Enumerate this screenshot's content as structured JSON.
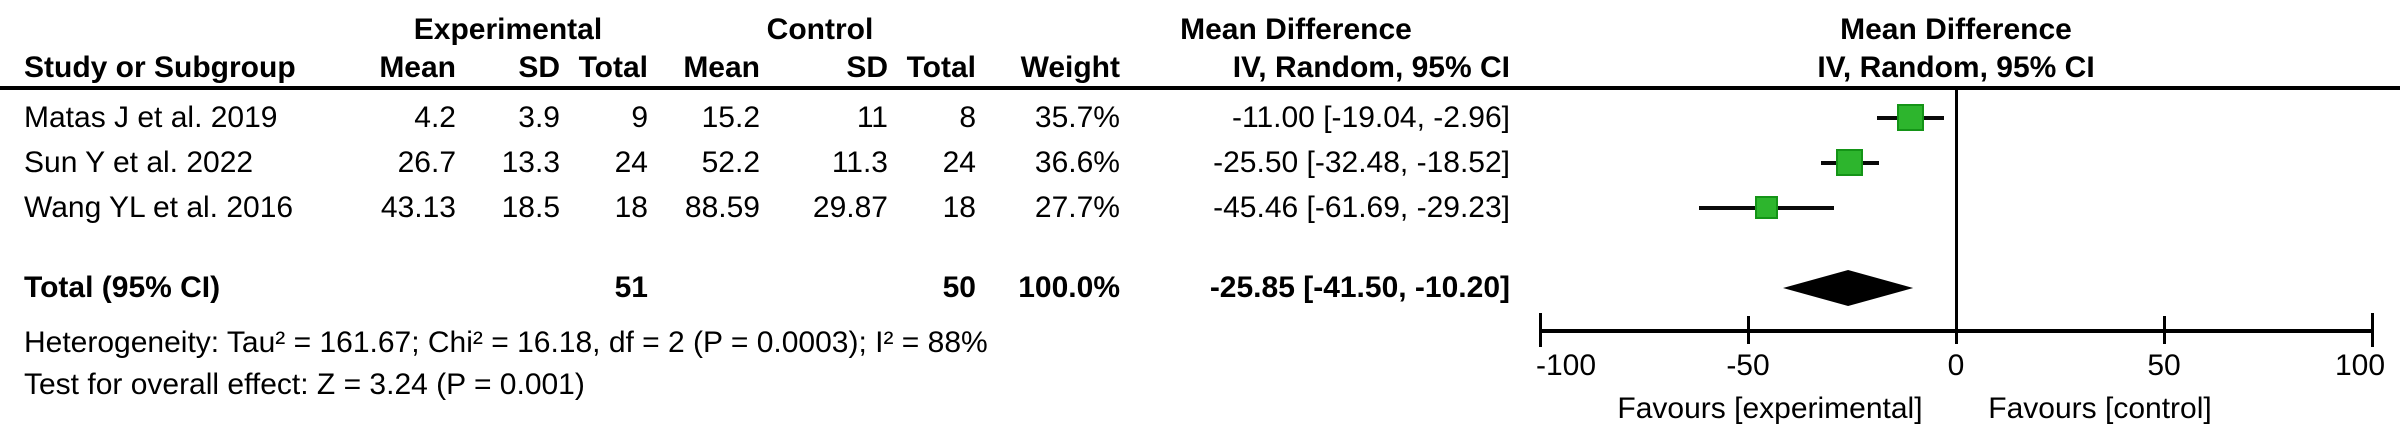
{
  "table": {
    "group_headers": {
      "experimental": "Experimental",
      "control": "Control",
      "md_left": "Mean Difference",
      "md_right": "Mean Difference"
    },
    "column_headers": {
      "study": "Study or Subgroup",
      "exp_mean": "Mean",
      "exp_sd": "SD",
      "exp_total": "Total",
      "ctl_mean": "Mean",
      "ctl_sd": "SD",
      "ctl_total": "Total",
      "weight": "Weight",
      "ci": "IV, Random, 95% CI",
      "ci_plot": "IV, Random, 95% CI"
    },
    "rows": [
      {
        "study": "Matas J et al. 2019",
        "exp_mean": "4.2",
        "exp_sd": "3.9",
        "exp_total": "9",
        "ctl_mean": "15.2",
        "ctl_sd": "11",
        "ctl_total": "8",
        "weight": "35.7%",
        "ci_text": "-11.00 [-19.04, -2.96]"
      },
      {
        "study": "Sun Y et al. 2022",
        "exp_mean": "26.7",
        "exp_sd": "13.3",
        "exp_total": "24",
        "ctl_mean": "52.2",
        "ctl_sd": "11.3",
        "ctl_total": "24",
        "weight": "36.6%",
        "ci_text": "-25.50 [-32.48, -18.52]"
      },
      {
        "study": "Wang YL et al. 2016",
        "exp_mean": "43.13",
        "exp_sd": "18.5",
        "exp_total": "18",
        "ctl_mean": "88.59",
        "ctl_sd": "29.87",
        "ctl_total": "18",
        "weight": "27.7%",
        "ci_text": "-45.46 [-61.69, -29.23]"
      }
    ],
    "total_row": {
      "label": "Total (95% CI)",
      "exp_total": "51",
      "ctl_total": "50",
      "weight": "100.0%",
      "ci_text": "-25.85 [-41.50, -10.20]"
    },
    "footnotes": [
      "Heterogeneity: Tau² = 161.67; Chi² = 16.18, df = 2 (P = 0.0003); I² = 88%",
      "Test for overall effect: Z = 3.24 (P = 0.001)"
    ]
  },
  "chart_data": {
    "type": "forest",
    "effect_measure": "Mean Difference, IV, Random, 95% CI",
    "x_axis": {
      "ticks": [
        -100,
        -50,
        0,
        50,
        100
      ],
      "range": [
        -100,
        100
      ]
    },
    "favours": {
      "left": "Favours [experimental]",
      "right": "Favours [control]"
    },
    "studies": [
      {
        "name": "Matas J et al. 2019",
        "md": -11.0,
        "ci": [
          -19.04,
          -2.96
        ],
        "weight_pct": 35.7
      },
      {
        "name": "Sun Y et al. 2022",
        "md": -25.5,
        "ci": [
          -32.48,
          -18.52
        ],
        "weight_pct": 36.6
      },
      {
        "name": "Wang YL et al. 2016",
        "md": -45.46,
        "ci": [
          -61.69,
          -29.23
        ],
        "weight_pct": 27.7
      }
    ],
    "overall": {
      "md": -25.85,
      "ci": [
        -41.5,
        -10.2
      ]
    },
    "heterogeneity": {
      "tau2": 161.67,
      "chi2": 16.18,
      "df": 2,
      "p": 0.0003,
      "i2_pct": 88
    },
    "overall_effect": {
      "z": 3.24,
      "p": 0.001
    },
    "marker_color": "#2DB52D",
    "marker_border_color": "#149417",
    "diamond_color": "#000000"
  }
}
